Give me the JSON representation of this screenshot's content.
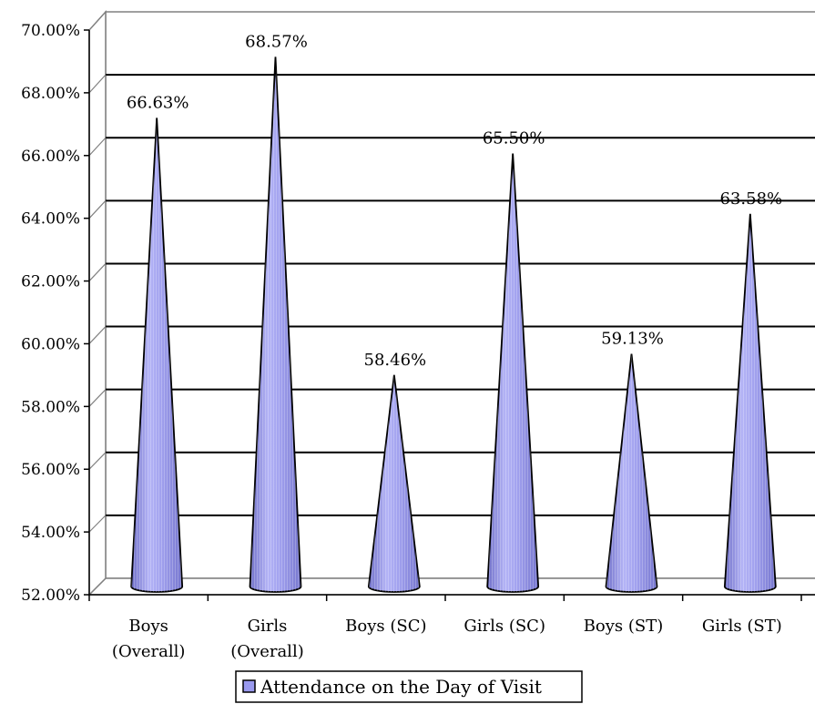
{
  "chart_data": {
    "type": "bar",
    "style": "3d-cone",
    "title": "",
    "xlabel": "",
    "ylabel": "",
    "categories": [
      [
        "Boys",
        "(Overall)"
      ],
      [
        "Girls",
        "(Overall)"
      ],
      [
        "Boys (SC)"
      ],
      [
        "Girls (SC)"
      ],
      [
        "Boys (ST)"
      ],
      [
        "Girls (ST)"
      ]
    ],
    "series": [
      {
        "name": "Attendance on the Day of Visit",
        "values": [
          66.63,
          68.57,
          58.46,
          65.5,
          59.13,
          63.58
        ],
        "labels": [
          "66.63%",
          "68.57%",
          "58.46%",
          "65.50%",
          "59.13%",
          "63.58%"
        ],
        "color": "#9999ee"
      }
    ],
    "ylim": [
      52,
      70
    ],
    "yticks": [
      "52.00%",
      "54.00%",
      "56.00%",
      "58.00%",
      "60.00%",
      "62.00%",
      "64.00%",
      "66.00%",
      "68.00%",
      "70.00%"
    ],
    "grid": true,
    "legend": "bottom-center"
  }
}
